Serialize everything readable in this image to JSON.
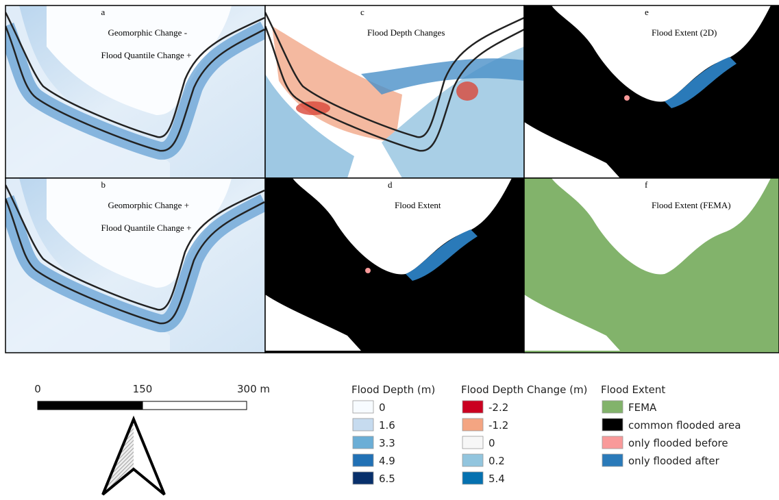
{
  "panels": [
    {
      "letter": "a",
      "title_lines": [
        "Geomorphic Change -",
        "Flood Quantile Change +"
      ]
    },
    {
      "letter": "c",
      "title_lines": [
        "Flood Depth Changes"
      ]
    },
    {
      "letter": "e",
      "title_lines": [
        "Flood Extent (2D)"
      ]
    },
    {
      "letter": "b",
      "title_lines": [
        "Geomorphic Change +",
        "Flood Quantile Change +"
      ]
    },
    {
      "letter": "d",
      "title_lines": [
        "Flood Extent"
      ]
    },
    {
      "letter": "f",
      "title_lines": [
        "Flood Extent (FEMA)"
      ]
    }
  ],
  "scale_bar": {
    "labels": [
      "0",
      "150",
      "300 m"
    ]
  },
  "legends": [
    {
      "title": "Flood Depth (m)",
      "items": [
        {
          "label": "0",
          "color": "#f7fbff"
        },
        {
          "label": "1.6",
          "color": "#c6dbef"
        },
        {
          "label": "3.3",
          "color": "#6baed6"
        },
        {
          "label": "4.9",
          "color": "#2171b5"
        },
        {
          "label": "6.5",
          "color": "#08306b"
        }
      ]
    },
    {
      "title": "Flood Depth Change (m)",
      "items": [
        {
          "label": "-2.2",
          "color": "#ca0020"
        },
        {
          "label": "-1.2",
          "color": "#f4a582"
        },
        {
          "label": "0",
          "color": "#f7f7f7"
        },
        {
          "label": "0.2",
          "color": "#92c5de"
        },
        {
          "label": "5.4",
          "color": "#0571b0"
        }
      ]
    },
    {
      "title": "Flood Extent",
      "items": [
        {
          "label": "FEMA",
          "color": "#82b36b"
        },
        {
          "label": "common flooded area",
          "color": "#000000"
        },
        {
          "label": "only flooded before",
          "color": "#f99a9a"
        },
        {
          "label": "only flooded after",
          "color": "#2a7ab9"
        }
      ]
    }
  ]
}
